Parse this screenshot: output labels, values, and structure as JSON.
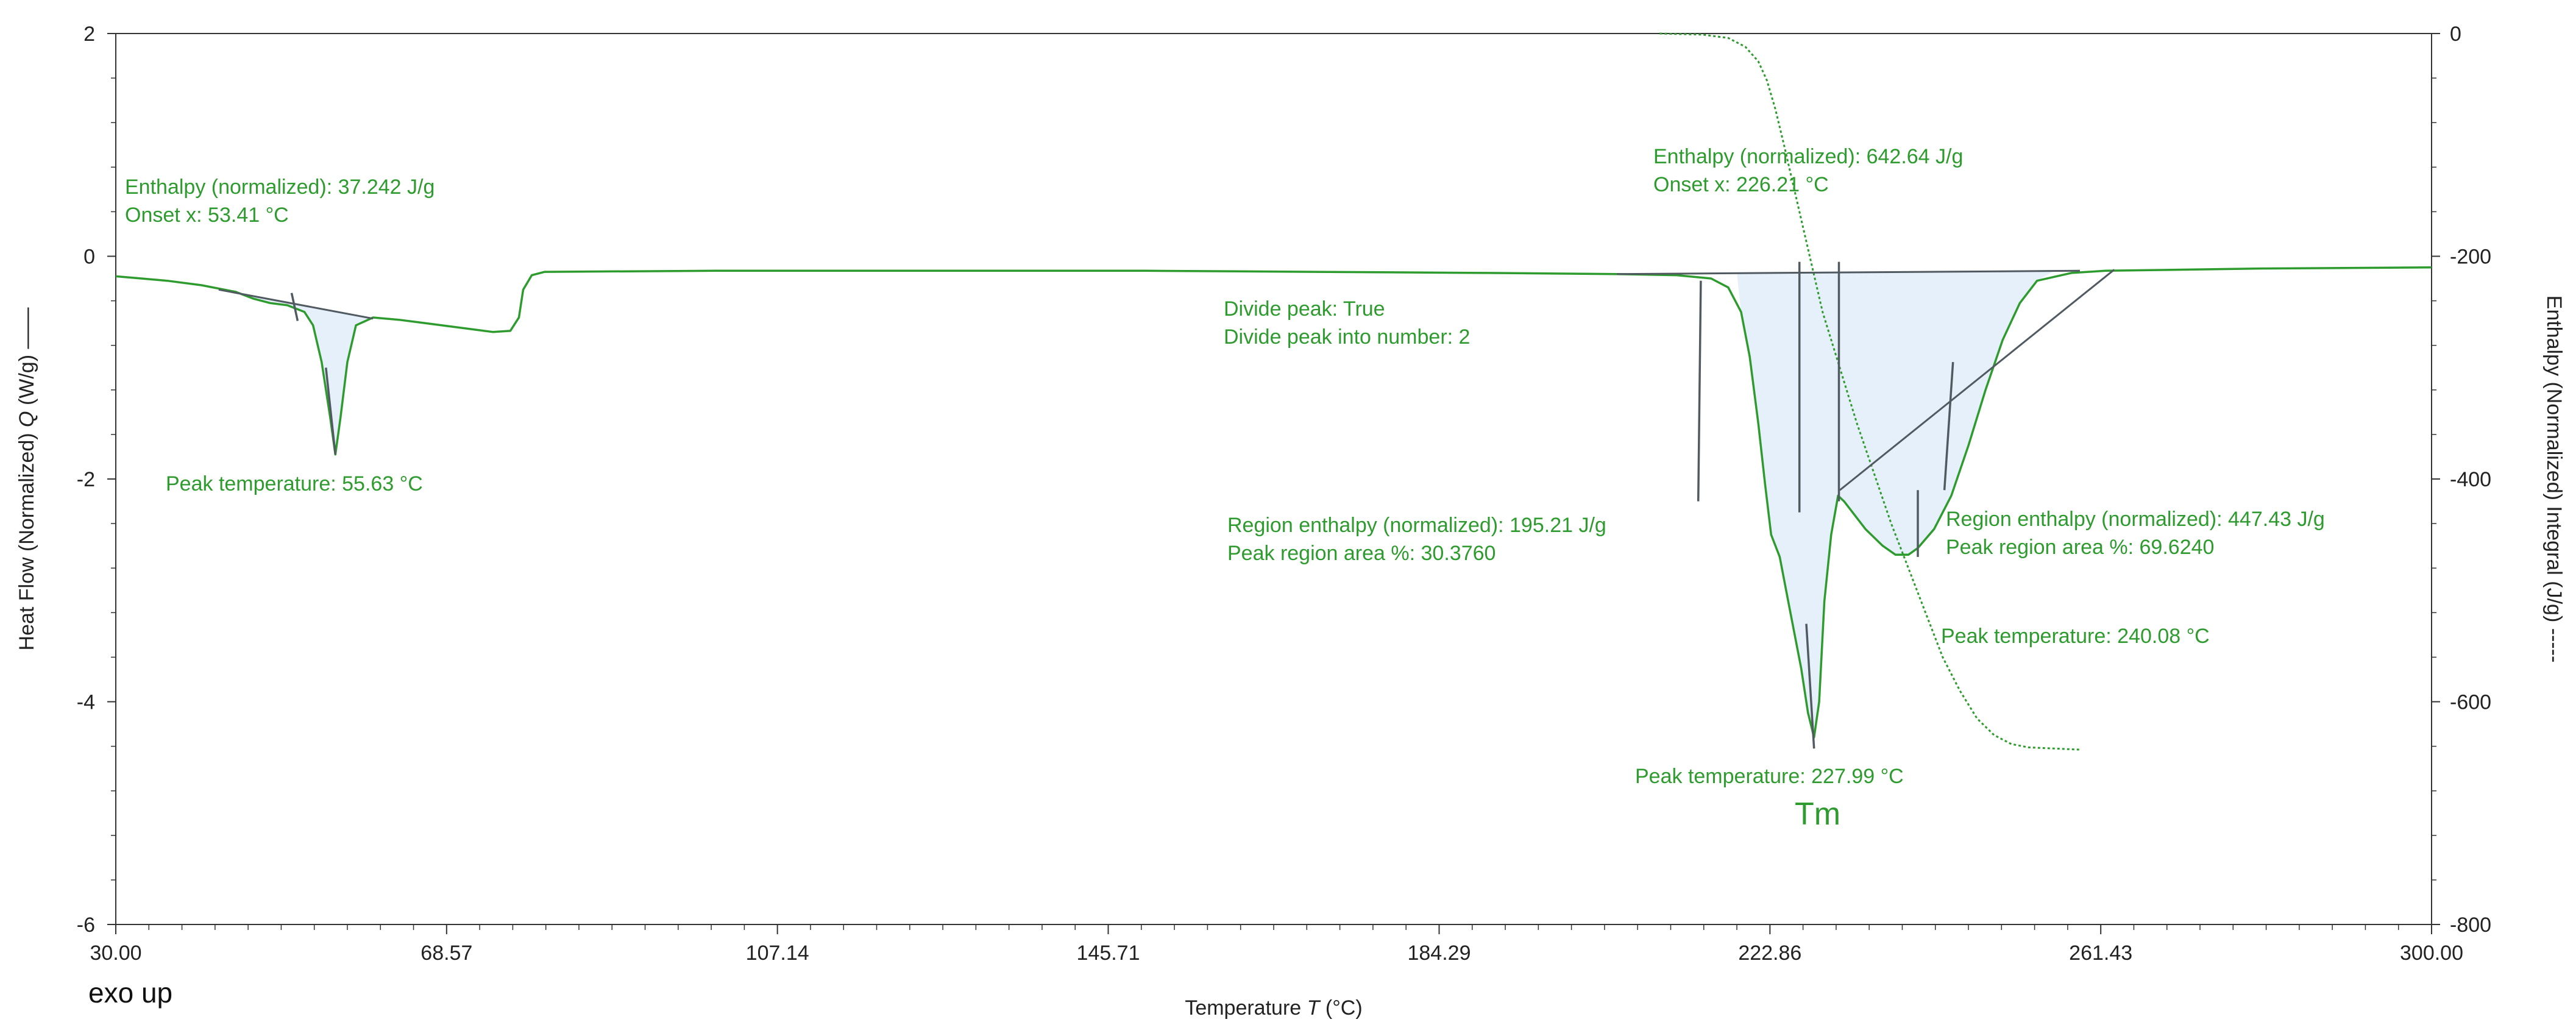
{
  "chart_data": {
    "type": "line",
    "x_axis": {
      "label": "Temperature",
      "symbol": "T",
      "unit": "(°C)",
      "range": [
        30,
        300
      ],
      "ticks": [
        "30.00",
        "68.57",
        "107.14",
        "145.71",
        "184.29",
        "222.86",
        "261.43",
        "300.00"
      ]
    },
    "y_axis_left": {
      "label": "Heat Flow (Normalized)",
      "symbol": "Q",
      "unit": "(W/g)",
      "suffix": "——",
      "range": [
        -6,
        2
      ],
      "ticks": [
        "2",
        "0",
        "-2",
        "-4",
        "-6"
      ]
    },
    "y_axis_right": {
      "label": "Enthalpy (Normalized) Integral",
      "unit": "(J/g)",
      "suffix": "-----",
      "range": [
        -800,
        0
      ],
      "ticks": [
        "0",
        "-200",
        "-400",
        "-600",
        "-800"
      ]
    },
    "series": [
      {
        "axis": "left",
        "color": "#2e9b2e",
        "points": [
          [
            30,
            -0.18
          ],
          [
            33,
            -0.2
          ],
          [
            36,
            -0.22
          ],
          [
            40,
            -0.26
          ],
          [
            44,
            -0.32
          ],
          [
            46,
            -0.38
          ],
          [
            48,
            -0.42
          ],
          [
            50,
            -0.44
          ],
          [
            52,
            -0.5
          ],
          [
            53,
            -0.62
          ],
          [
            54,
            -0.95
          ],
          [
            55,
            -1.45
          ],
          [
            55.6,
            -1.78
          ],
          [
            56.2,
            -1.45
          ],
          [
            57,
            -0.95
          ],
          [
            58,
            -0.62
          ],
          [
            60,
            -0.55
          ],
          [
            63,
            -0.57
          ],
          [
            66,
            -0.6
          ],
          [
            69,
            -0.63
          ],
          [
            72,
            -0.66
          ],
          [
            74,
            -0.68
          ],
          [
            76,
            -0.67
          ],
          [
            77,
            -0.55
          ],
          [
            77.5,
            -0.3
          ],
          [
            78.5,
            -0.17
          ],
          [
            80,
            -0.14
          ],
          [
            100,
            -0.13
          ],
          [
            150,
            -0.13
          ],
          [
            190,
            -0.15
          ],
          [
            205,
            -0.16
          ],
          [
            212,
            -0.17
          ],
          [
            216,
            -0.2
          ],
          [
            218,
            -0.28
          ],
          [
            219.5,
            -0.5
          ],
          [
            220.5,
            -0.9
          ],
          [
            221.5,
            -1.5
          ],
          [
            222.3,
            -2.05
          ],
          [
            223,
            -2.5
          ],
          [
            224,
            -2.7
          ],
          [
            225,
            -3.1
          ],
          [
            226.5,
            -3.7
          ],
          [
            227.3,
            -4.1
          ],
          [
            228,
            -4.32
          ],
          [
            228.6,
            -4.0
          ],
          [
            229.2,
            -3.1
          ],
          [
            230,
            -2.5
          ],
          [
            230.8,
            -2.15
          ],
          [
            231.5,
            -2.2
          ],
          [
            232.5,
            -2.3
          ],
          [
            234,
            -2.45
          ],
          [
            236,
            -2.6
          ],
          [
            237.5,
            -2.68
          ],
          [
            239,
            -2.68
          ],
          [
            240.1,
            -2.62
          ],
          [
            242,
            -2.45
          ],
          [
            244,
            -2.15
          ],
          [
            246,
            -1.7
          ],
          [
            248,
            -1.2
          ],
          [
            250,
            -0.75
          ],
          [
            252,
            -0.42
          ],
          [
            254,
            -0.22
          ],
          [
            258,
            -0.15
          ],
          [
            262,
            -0.13
          ],
          [
            280,
            -0.11
          ],
          [
            300,
            -0.1
          ]
        ]
      },
      {
        "axis": "right",
        "color": "#2e9b2e",
        "points": [
          [
            210,
            0
          ],
          [
            215,
            -1
          ],
          [
            218,
            -4
          ],
          [
            220,
            -12
          ],
          [
            221.5,
            -25
          ],
          [
            222.5,
            -42
          ],
          [
            223.5,
            -68
          ],
          [
            224.5,
            -100
          ],
          [
            226,
            -150
          ],
          [
            227.5,
            -200
          ],
          [
            229,
            -250
          ],
          [
            231,
            -300
          ],
          [
            233,
            -350
          ],
          [
            235,
            -395
          ],
          [
            237,
            -440
          ],
          [
            239,
            -480
          ],
          [
            241,
            -520
          ],
          [
            243,
            -560
          ],
          [
            245,
            -590
          ],
          [
            247,
            -615
          ],
          [
            249,
            -630
          ],
          [
            251,
            -638
          ],
          [
            253,
            -641
          ],
          [
            256,
            -642
          ],
          [
            259,
            -643
          ]
        ]
      }
    ],
    "baselines": [
      {
        "color": "#505a60",
        "points": [
          [
            42,
            -0.3
          ],
          [
            60,
            -0.56
          ]
        ]
      },
      {
        "color": "#505a60",
        "points": [
          [
            205,
            -0.16
          ],
          [
            259,
            -0.13
          ]
        ]
      },
      {
        "color": "#505a60",
        "points": [
          [
            231,
            -2.1
          ],
          [
            263,
            -0.12
          ]
        ]
      }
    ],
    "markers": [
      {
        "color": "#505a60",
        "points": [
          [
            50.5,
            -0.33
          ],
          [
            51.2,
            -0.58
          ]
        ]
      },
      {
        "color": "#505a60",
        "points": [
          [
            54.5,
            -1.0
          ],
          [
            55.6,
            -1.78
          ]
        ]
      },
      {
        "color": "#505a60",
        "points": [
          [
            214.8,
            -0.22
          ],
          [
            214.5,
            -2.2
          ]
        ]
      },
      {
        "color": "#505a60",
        "points": [
          [
            226.3,
            -0.05
          ],
          [
            226.3,
            -2.3
          ]
        ]
      },
      {
        "color": "#505a60",
        "points": [
          [
            227.1,
            -3.3
          ],
          [
            228.0,
            -4.42
          ]
        ]
      },
      {
        "color": "#505a60",
        "points": [
          [
            230.9,
            -0.05
          ],
          [
            230.9,
            -2.2
          ]
        ]
      },
      {
        "color": "#505a60",
        "points": [
          [
            240.1,
            -2.7
          ],
          [
            240.1,
            -2.1
          ]
        ]
      },
      {
        "color": "#505a60",
        "points": [
          [
            243.2,
            -2.1
          ],
          [
            244.2,
            -0.95
          ]
        ]
      }
    ],
    "annotations": [
      {
        "lines": [
          "Enthalpy (normalized): 37.242 J/g",
          "Onset x: 53.41 °C"
        ]
      },
      {
        "lines": [
          "Peak temperature: 55.63 °C"
        ]
      },
      {
        "lines": [
          "Enthalpy (normalized): 642.64 J/g",
          "Onset x: 226.21 °C"
        ]
      },
      {
        "lines": [
          "Divide peak: True",
          "Divide peak into number: 2"
        ]
      },
      {
        "lines": [
          "Region enthalpy (normalized): 195.21 J/g",
          "Peak region area %: 30.3760"
        ]
      },
      {
        "lines": [
          "Region enthalpy (normalized): 447.43 J/g",
          "Peak region area %: 69.6240"
        ]
      },
      {
        "lines": [
          "Peak temperature: 240.08 °C"
        ]
      },
      {
        "lines": [
          "Peak temperature: 227.99 °C"
        ]
      },
      {
        "lines": [
          "Tm"
        ]
      }
    ],
    "footer_note": "exo up",
    "grid": false,
    "colors": {
      "curve": "#2e9b2e",
      "baseline": "#505a60",
      "fill": "#e6f0fa",
      "axis": "#333333"
    }
  }
}
